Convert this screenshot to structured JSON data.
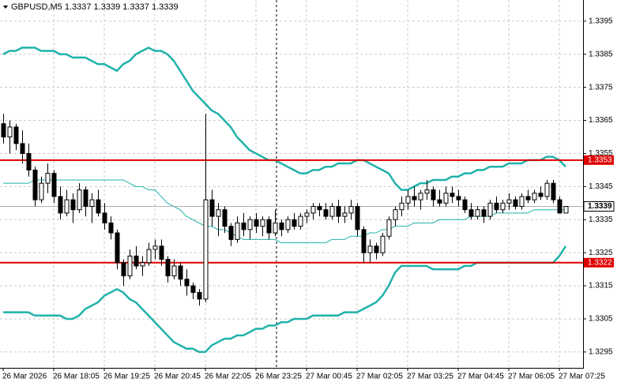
{
  "chart_data": {
    "type": "candlestick",
    "title": "GBPUSD,M5  1.3337 1.3339 1.3337 1.3339",
    "categories": [
      "26 Mar 2026",
      null,
      null,
      null,
      null,
      null,
      null,
      null,
      "26 Mar 18:05",
      null,
      null,
      null,
      null,
      null,
      null,
      null,
      "26 Mar 19:25",
      null,
      null,
      null,
      null,
      null,
      null,
      null,
      "26 Mar 20:45",
      null,
      null,
      null,
      null,
      null,
      null,
      null,
      "26 Mar 22:05",
      null,
      null,
      null,
      null,
      null,
      null,
      null,
      "26 Mar 23:25",
      null,
      null,
      null,
      null,
      null,
      null,
      null,
      "27 Mar 00:45",
      null,
      null,
      null,
      null,
      null,
      null,
      null,
      "27 Mar 02:05",
      null,
      null,
      null,
      null,
      null,
      null,
      null,
      "27 Mar 03:25",
      null,
      null,
      null,
      null,
      null,
      null,
      null,
      "27 Mar 04:45",
      null,
      null,
      null,
      null,
      null,
      null,
      null,
      "27 Mar 06:05",
      null,
      null,
      null,
      null,
      null,
      null,
      null,
      "27 Mar 07:25",
      null
    ],
    "open": [
      1.3364,
      1.336,
      1.3363,
      1.3358,
      1.3355,
      1.335,
      1.3341,
      1.3346,
      1.3349,
      1.3342,
      1.3337,
      1.3341,
      1.3338,
      1.3344,
      1.3339,
      1.3341,
      1.3337,
      1.3334,
      1.3331,
      1.3322,
      1.3318,
      1.3324,
      1.3321,
      1.3322,
      1.3326,
      1.3327,
      1.3323,
      1.3318,
      1.3321,
      1.3317,
      1.3315,
      1.3313,
      1.3311,
      1.3341,
      1.3336,
      1.3338,
      1.3333,
      1.3329,
      1.3334,
      1.3332,
      1.3335,
      1.3333,
      1.3335,
      1.3331,
      1.3334,
      1.3332,
      1.3335,
      1.3333,
      1.3336,
      1.3337,
      1.3339,
      1.3338,
      1.3336,
      1.3339,
      1.3336,
      1.3337,
      1.3339,
      1.3332,
      1.3325,
      1.3327,
      1.3325,
      1.333,
      1.3335,
      1.3338,
      1.334,
      1.3342,
      1.3341,
      1.3343,
      1.3344,
      1.3341,
      1.334,
      1.3343,
      1.3342,
      1.3341,
      1.3338,
      1.3336,
      1.3338,
      1.3336,
      1.334,
      1.3338,
      1.334,
      1.3341,
      1.3339,
      1.3342,
      1.3341,
      1.3343,
      1.3342,
      1.3346,
      1.3341,
      1.3337
    ],
    "high": [
      1.3367,
      1.3365,
      1.3364,
      1.3362,
      1.3358,
      1.3351,
      1.3348,
      1.3352,
      1.335,
      1.3345,
      1.3344,
      1.3343,
      1.3346,
      1.3345,
      1.3343,
      1.3344,
      1.334,
      1.3336,
      1.3332,
      1.3323,
      1.3326,
      1.3327,
      1.3324,
      1.3328,
      1.3329,
      1.3329,
      1.3324,
      1.3323,
      1.3322,
      1.332,
      1.3316,
      1.3314,
      1.3367,
      1.3344,
      1.334,
      1.3339,
      1.3334,
      1.3336,
      1.3337,
      1.3336,
      1.3337,
      1.3336,
      1.3336,
      1.3338,
      1.3335,
      1.3336,
      1.3337,
      1.3337,
      1.3338,
      1.334,
      1.334,
      1.334,
      1.334,
      1.3341,
      1.3339,
      1.3341,
      1.334,
      1.3333,
      1.3329,
      1.3328,
      1.3331,
      1.3336,
      1.3339,
      1.3342,
      1.3344,
      1.3345,
      1.3344,
      1.3347,
      1.3345,
      1.3344,
      1.3345,
      1.3345,
      1.3344,
      1.3342,
      1.334,
      1.3339,
      1.3339,
      1.3341,
      1.3342,
      1.3341,
      1.3343,
      1.3342,
      1.3343,
      1.3344,
      1.3344,
      1.3345,
      1.3347,
      1.3347,
      1.3342,
      1.3339
    ],
    "low": [
      1.3358,
      1.3355,
      1.3356,
      1.3352,
      1.3348,
      1.3339,
      1.334,
      1.3343,
      1.334,
      1.3335,
      1.3336,
      1.3334,
      1.3337,
      1.3336,
      1.3334,
      1.3336,
      1.3332,
      1.3329,
      1.332,
      1.3315,
      1.3317,
      1.332,
      1.3318,
      1.3321,
      1.3323,
      1.3321,
      1.3316,
      1.3317,
      1.3315,
      1.3312,
      1.3311,
      1.3309,
      1.331,
      1.3333,
      1.333,
      1.3331,
      1.3327,
      1.3328,
      1.333,
      1.3329,
      1.3331,
      1.333,
      1.3329,
      1.333,
      1.333,
      1.3331,
      1.3332,
      1.3332,
      1.3334,
      1.3335,
      1.3336,
      1.3335,
      1.3335,
      1.3334,
      1.3334,
      1.3335,
      1.333,
      1.3322,
      1.3322,
      1.3323,
      1.3324,
      1.3329,
      1.3333,
      1.3336,
      1.3338,
      1.3339,
      1.3338,
      1.3341,
      1.3339,
      1.3339,
      1.3339,
      1.334,
      1.3339,
      1.3337,
      1.3335,
      1.3335,
      1.3334,
      1.3335,
      1.3337,
      1.3337,
      1.3338,
      1.3338,
      1.3338,
      1.334,
      1.334,
      1.3341,
      1.3341,
      1.334,
      1.3337,
      1.3337
    ],
    "close": [
      1.336,
      1.3363,
      1.3358,
      1.3355,
      1.335,
      1.3341,
      1.3346,
      1.3349,
      1.3342,
      1.3337,
      1.3341,
      1.3338,
      1.3344,
      1.3339,
      1.3341,
      1.3337,
      1.3334,
      1.3331,
      1.3322,
      1.3318,
      1.3324,
      1.3321,
      1.3322,
      1.3326,
      1.3327,
      1.3323,
      1.3318,
      1.3321,
      1.3317,
      1.3315,
      1.3313,
      1.3311,
      1.3341,
      1.3336,
      1.3338,
      1.3333,
      1.3329,
      1.3334,
      1.3332,
      1.3335,
      1.3333,
      1.3335,
      1.3331,
      1.3334,
      1.3332,
      1.3335,
      1.3333,
      1.3336,
      1.3337,
      1.3339,
      1.3338,
      1.3336,
      1.3339,
      1.3336,
      1.3337,
      1.3339,
      1.3332,
      1.3325,
      1.3327,
      1.3325,
      1.333,
      1.3335,
      1.3338,
      1.334,
      1.3342,
      1.3341,
      1.3343,
      1.3344,
      1.3341,
      1.334,
      1.3343,
      1.3342,
      1.3341,
      1.3338,
      1.3336,
      1.3338,
      1.3336,
      1.334,
      1.3338,
      1.334,
      1.3341,
      1.3339,
      1.3342,
      1.3341,
      1.3343,
      1.3342,
      1.3346,
      1.3341,
      1.3337,
      1.3339
    ],
    "bands": {
      "color": "#20b2aa",
      "upper": [
        1.3385,
        1.3386,
        1.3386,
        1.3387,
        1.3387,
        1.3387,
        1.3386,
        1.3386,
        1.3386,
        1.3385,
        1.3385,
        1.3384,
        1.3384,
        1.3384,
        1.3383,
        1.3382,
        1.3382,
        1.3381,
        1.338,
        1.3382,
        1.3383,
        1.3385,
        1.3386,
        1.3387,
        1.3386,
        1.3386,
        1.3385,
        1.3383,
        1.338,
        1.3377,
        1.3374,
        1.3372,
        1.337,
        1.3368,
        1.3367,
        1.3365,
        1.3363,
        1.336,
        1.3358,
        1.3356,
        1.3355,
        1.3354,
        1.3353,
        1.3353,
        1.3352,
        1.3351,
        1.335,
        1.3349,
        1.3349,
        1.335,
        1.335,
        1.3351,
        1.3351,
        1.3352,
        1.3352,
        1.3352,
        1.3353,
        1.3353,
        1.3352,
        1.3351,
        1.335,
        1.3349,
        1.3346,
        1.3344,
        1.3344,
        1.3345,
        1.3346,
        1.3346,
        1.3347,
        1.3347,
        1.3347,
        1.3348,
        1.3348,
        1.3349,
        1.3349,
        1.335,
        1.335,
        1.3351,
        1.3351,
        1.3351,
        1.3352,
        1.3352,
        1.3352,
        1.3353,
        1.3353,
        1.3353,
        1.3354,
        1.3354,
        1.3353,
        1.3351
      ],
      "middle": [
        1.3346,
        1.3346,
        1.3346,
        1.3346,
        1.3346,
        1.3347,
        1.3347,
        1.3347,
        1.3347,
        1.3347,
        1.3347,
        1.3347,
        1.3347,
        1.3347,
        1.3347,
        1.3347,
        1.3347,
        1.3347,
        1.3347,
        1.3347,
        1.3346,
        1.3345,
        1.3345,
        1.3344,
        1.3344,
        1.3342,
        1.334,
        1.3339,
        1.3338,
        1.3336,
        1.3335,
        1.3334,
        1.3333,
        1.3333,
        1.3332,
        1.3332,
        1.3331,
        1.333,
        1.3329,
        1.3329,
        1.3329,
        1.3329,
        1.3329,
        1.3329,
        1.3328,
        1.3328,
        1.3328,
        1.3328,
        1.3328,
        1.3328,
        1.3328,
        1.3328,
        1.3329,
        1.3329,
        1.3329,
        1.333,
        1.333,
        1.333,
        1.3331,
        1.3331,
        1.3332,
        1.3332,
        1.3333,
        1.3333,
        1.3333,
        1.3334,
        1.3334,
        1.3334,
        1.3334,
        1.3335,
        1.3335,
        1.3335,
        1.3335,
        1.3335,
        1.3336,
        1.3336,
        1.3336,
        1.3336,
        1.3337,
        1.3337,
        1.3337,
        1.3337,
        1.3337,
        1.3337,
        1.3338,
        1.3338,
        1.3338,
        1.3338,
        1.3338,
        1.3338
      ],
      "lower": [
        1.3307,
        1.3307,
        1.3307,
        1.3307,
        1.3307,
        1.3306,
        1.3306,
        1.3306,
        1.3306,
        1.3306,
        1.3305,
        1.3305,
        1.3306,
        1.3308,
        1.3309,
        1.331,
        1.3312,
        1.3313,
        1.3314,
        1.3313,
        1.3311,
        1.331,
        1.3308,
        1.3306,
        1.3304,
        1.3302,
        1.33,
        1.3298,
        1.3297,
        1.3296,
        1.3296,
        1.3295,
        1.3295,
        1.3297,
        1.3298,
        1.3299,
        1.3299,
        1.33,
        1.33,
        1.3301,
        1.3302,
        1.3302,
        1.3303,
        1.3303,
        1.3304,
        1.3304,
        1.3305,
        1.3305,
        1.3305,
        1.3306,
        1.3306,
        1.3306,
        1.3306,
        1.3306,
        1.3307,
        1.3307,
        1.3307,
        1.3308,
        1.3309,
        1.331,
        1.3312,
        1.3315,
        1.3319,
        1.3321,
        1.3321,
        1.3321,
        1.3321,
        1.3321,
        1.332,
        1.332,
        1.332,
        1.332,
        1.332,
        1.3321,
        1.3321,
        1.3322,
        1.3322,
        1.3322,
        1.3322,
        1.3322,
        1.3322,
        1.3322,
        1.3322,
        1.3322,
        1.3322,
        1.3322,
        1.3322,
        1.3322,
        1.3324,
        1.3327
      ]
    },
    "levels": [
      1.3353,
      1.3322
    ],
    "level_color": "#e00000",
    "last_price": 1.3339,
    "ylim": [
      1.32902,
      1.34014
    ],
    "yticks": [
      1.3295,
      1.3305,
      1.3315,
      1.3325,
      1.3335,
      1.3345,
      1.3355,
      1.3365,
      1.3375,
      1.3385,
      1.3395
    ],
    "grid": true
  }
}
